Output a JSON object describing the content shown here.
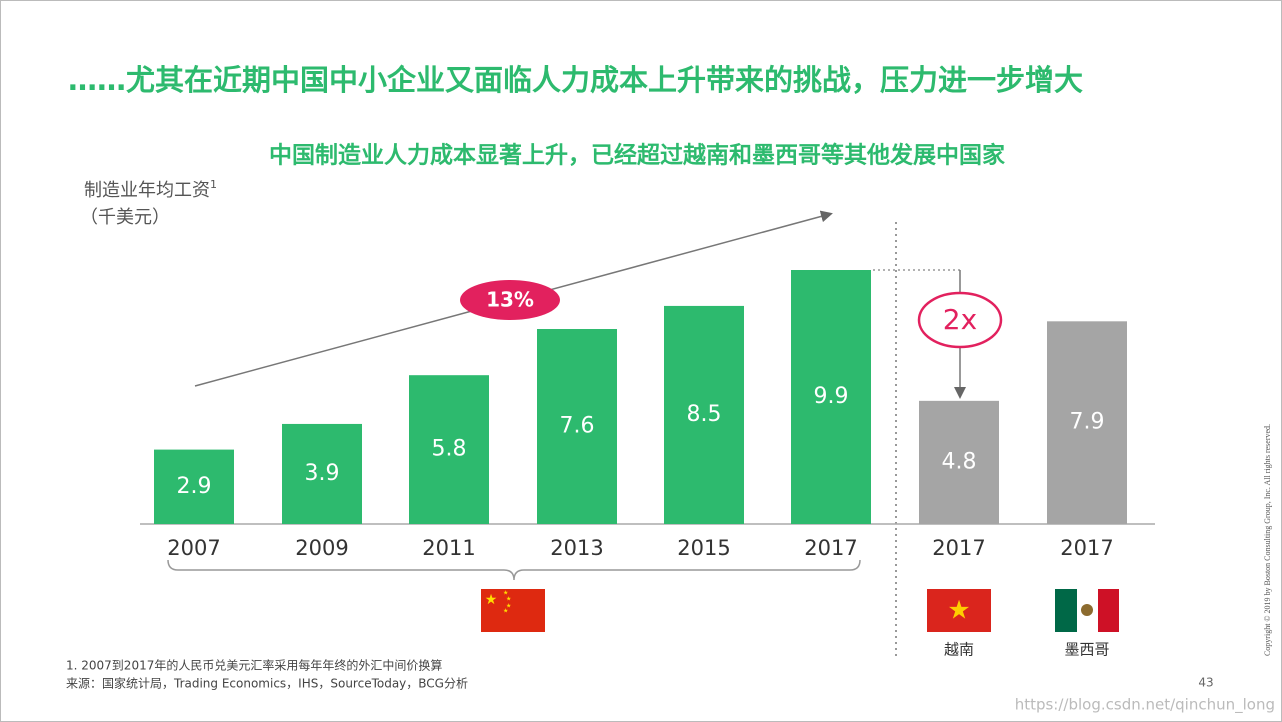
{
  "chart_data": {
    "type": "bar",
    "title": "……尤其在近期中国中小企业又面临人力成本上升带来的挑战，压力进一步增大",
    "subtitle": "中国制造业人力成本显著上升，已经超过越南和墨西哥等其他发展中国家",
    "y_label": "制造业年均工资",
    "y_label_note": "1",
    "y_unit": "（千美元）",
    "categories": [
      "2007",
      "2009",
      "2011",
      "2013",
      "2015",
      "2017",
      "2017",
      "2017"
    ],
    "values": [
      2.9,
      3.9,
      5.8,
      7.6,
      8.5,
      9.9,
      4.8,
      7.9
    ],
    "colors": [
      "#2dba6e",
      "#2dba6e",
      "#2dba6e",
      "#2dba6e",
      "#2dba6e",
      "#2dba6e",
      "#a5a5a5",
      "#a5a5a5"
    ],
    "growth_label": "13%",
    "multiple_label": "2x",
    "country_labels": [
      "越南",
      "墨西哥"
    ]
  },
  "footnotes": [
    "1. 2007到2017年的人民币兑美元汇率采用每年年终的外汇中间价换算",
    "来源：国家统计局，Trading Economics，IHS，SourceToday，BCG分析"
  ],
  "page_number": "43",
  "copyright": "Copyright © 2019 by Boston Consulting Group, Inc. All rights reserved.",
  "watermark": "https://blog.csdn.net/qinchun_long"
}
